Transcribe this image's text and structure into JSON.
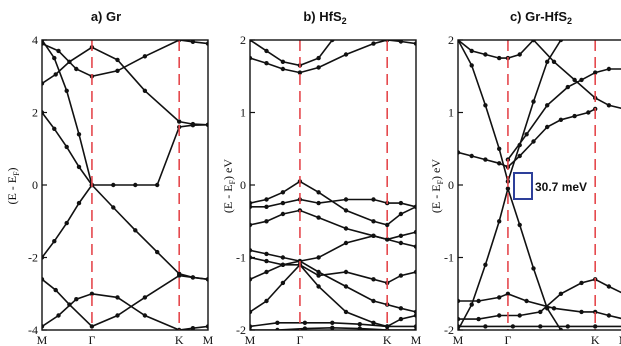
{
  "chart_data": [
    {
      "type": "line",
      "title": "a) Gr",
      "ylabel": "(E - E",
      "ylabel_sub": "F",
      "ylabel_close": ")",
      "ylim": [
        -4,
        4
      ],
      "yticks": [
        4,
        2,
        0,
        -2,
        -4
      ],
      "kpoints": [
        "M",
        "Γ",
        "K",
        "M"
      ],
      "kpos": [
        0,
        0.364,
        1.0,
        1.21
      ],
      "high_symmetry_lines": [
        "Γ",
        "K"
      ],
      "colors": {
        "bands": "#111111",
        "symmetry_line": "#e5484d"
      },
      "series": [
        {
          "x": [
            0,
            0.09,
            0.18,
            0.27,
            0.364,
            0.52,
            0.68,
            0.84,
            1.0,
            1.1,
            1.21
          ],
          "y": [
            2.0,
            1.55,
            1.05,
            0.5,
            0.0,
            0.0,
            0.0,
            0.0,
            1.6,
            1.65,
            1.66
          ]
        },
        {
          "x": [
            0,
            0.09,
            0.18,
            0.27,
            0.364,
            0.52,
            0.68,
            0.84,
            1.0,
            1.1,
            1.21
          ],
          "y": [
            -2.0,
            -1.55,
            -1.05,
            -0.5,
            0.0,
            -0.62,
            -1.25,
            -1.85,
            -2.45,
            -2.55,
            -2.6
          ]
        },
        {
          "x": [
            0,
            0.1,
            0.2,
            0.364,
            0.55,
            0.75,
            1.0,
            1.1,
            1.21
          ],
          "y": [
            2.8,
            3.05,
            3.4,
            3.8,
            3.45,
            2.6,
            1.75,
            1.68,
            1.66
          ]
        },
        {
          "x": [
            0,
            0.1,
            0.2,
            0.364,
            0.55,
            0.75,
            1.0,
            1.1,
            1.21
          ],
          "y": [
            -2.6,
            -2.9,
            -3.3,
            -3.9,
            -3.6,
            -3.1,
            -2.5,
            -2.55,
            -2.6
          ]
        },
        {
          "x": [
            0,
            0.12,
            0.25,
            0.364,
            0.55,
            0.75,
            1.0,
            1.1,
            1.21
          ],
          "y": [
            3.9,
            3.7,
            3.2,
            3.0,
            3.15,
            3.55,
            4.0,
            3.95,
            3.9
          ]
        },
        {
          "x": [
            0,
            0.12,
            0.25,
            0.364,
            0.55,
            0.75,
            1.0,
            1.1,
            1.21
          ],
          "y": [
            -3.9,
            -3.6,
            -3.15,
            -3.0,
            -3.1,
            -3.6,
            -4.0,
            -3.95,
            -3.9
          ]
        },
        {
          "x": [
            0,
            0.09,
            0.18,
            0.27,
            0.364
          ],
          "y": [
            4.0,
            3.5,
            2.6,
            1.4,
            0.0
          ]
        }
      ]
    },
    {
      "type": "line",
      "title": "b) HfS",
      "title_sub": "2",
      "ylabel": "(E - E",
      "ylabel_sub": "F",
      "ylabel_close": ") eV",
      "ylim": [
        -2,
        2
      ],
      "yticks": [
        2,
        1,
        0,
        -1,
        -2
      ],
      "kpoints": [
        "M",
        "Γ",
        "K",
        "M"
      ],
      "kpos": [
        0,
        0.364,
        1.0,
        1.21
      ],
      "high_symmetry_lines": [
        "Γ",
        "K"
      ],
      "colors": {
        "bands": "#111111",
        "symmetry_line": "#e5484d"
      },
      "series": [
        {
          "x": [
            0,
            0.12,
            0.24,
            0.364,
            0.5,
            0.7,
            0.9,
            1.0,
            1.1,
            1.21
          ],
          "y": [
            1.75,
            1.68,
            1.6,
            1.55,
            1.62,
            1.8,
            1.95,
            2.0,
            1.98,
            1.95
          ]
        },
        {
          "x": [
            0,
            0.12,
            0.24,
            0.364,
            0.5,
            0.6
          ],
          "y": [
            2.0,
            1.85,
            1.7,
            1.65,
            1.75,
            2.0
          ]
        },
        {
          "x": [
            0,
            0.12,
            0.24,
            0.364,
            0.5,
            0.7,
            0.9,
            1.0,
            1.1,
            1.21
          ],
          "y": [
            -0.25,
            -0.2,
            -0.1,
            0.05,
            -0.1,
            -0.35,
            -0.5,
            -0.55,
            -0.4,
            -0.3
          ]
        },
        {
          "x": [
            0,
            0.12,
            0.24,
            0.364,
            0.5,
            0.7,
            0.9,
            1.0,
            1.1,
            1.21
          ],
          "y": [
            -0.3,
            -0.3,
            -0.25,
            -0.2,
            -0.25,
            -0.2,
            -0.2,
            -0.25,
            -0.25,
            -0.3
          ]
        },
        {
          "x": [
            0,
            0.12,
            0.24,
            0.364,
            0.5,
            0.7,
            0.9,
            1.0,
            1.1,
            1.21
          ],
          "y": [
            -0.55,
            -0.5,
            -0.4,
            -0.35,
            -0.45,
            -0.6,
            -0.7,
            -0.75,
            -0.7,
            -0.65
          ]
        },
        {
          "x": [
            0,
            0.12,
            0.24,
            0.364,
            0.5,
            0.7,
            0.9,
            1.0,
            1.1,
            1.21
          ],
          "y": [
            -0.9,
            -0.95,
            -1.0,
            -1.05,
            -1.0,
            -0.8,
            -0.7,
            -0.75,
            -0.8,
            -0.85
          ]
        },
        {
          "x": [
            0,
            0.12,
            0.24,
            0.364,
            0.5,
            0.7,
            0.9,
            1.0,
            1.1,
            1.21
          ],
          "y": [
            -1.0,
            -1.05,
            -1.1,
            -1.05,
            -1.2,
            -1.4,
            -1.6,
            -1.65,
            -1.7,
            -1.75
          ]
        },
        {
          "x": [
            0,
            0.12,
            0.24,
            0.364,
            0.5,
            0.7,
            0.9,
            1.0,
            1.1,
            1.21
          ],
          "y": [
            -1.3,
            -1.2,
            -1.1,
            -1.1,
            -1.25,
            -1.2,
            -1.3,
            -1.35,
            -1.25,
            -1.2
          ]
        },
        {
          "x": [
            0,
            0.12,
            0.24,
            0.364,
            0.5,
            0.7,
            0.9,
            1.0,
            1.1,
            1.21
          ],
          "y": [
            -1.75,
            -1.6,
            -1.35,
            -1.1,
            -1.4,
            -1.75,
            -1.9,
            -1.95,
            -1.85,
            -1.8
          ]
        },
        {
          "x": [
            0,
            0.2,
            0.4,
            0.6,
            0.8,
            1.0,
            1.21
          ],
          "y": [
            -1.95,
            -1.9,
            -1.9,
            -1.9,
            -1.92,
            -1.95,
            -1.95
          ]
        },
        {
          "x": [
            0,
            0.2,
            0.4,
            0.6,
            0.8,
            1.0,
            1.21
          ],
          "y": [
            -2.0,
            -2.0,
            -1.98,
            -1.97,
            -1.98,
            -2.0,
            -2.0
          ]
        }
      ]
    },
    {
      "type": "line",
      "title": "c) Gr-HfS",
      "title_sub": "2",
      "ylabel": "(E - E",
      "ylabel_sub": "F",
      "ylabel_close": ") eV",
      "ylim": [
        -2,
        2
      ],
      "yticks": [
        2,
        1,
        0,
        -1,
        -2
      ],
      "kpoints": [
        "M",
        "Γ",
        "K",
        "M"
      ],
      "kpos": [
        0,
        0.364,
        1.0,
        1.21
      ],
      "high_symmetry_lines": [
        "Γ",
        "K"
      ],
      "annotation": "30.7 meV",
      "colors": {
        "bands": "#111111",
        "symmetry_line": "#e5484d",
        "box": "#2d3f9a"
      },
      "series": [
        {
          "x": [
            0,
            0.1,
            0.2,
            0.3,
            0.364,
            0.45,
            0.55,
            0.65,
            0.75
          ],
          "y": [
            2.0,
            1.65,
            1.1,
            0.5,
            0.05,
            0.55,
            1.15,
            1.7,
            2.0
          ]
        },
        {
          "x": [
            0,
            0.1,
            0.2,
            0.3,
            0.364,
            0.45,
            0.55,
            0.65,
            0.75
          ],
          "y": [
            -2.0,
            -1.65,
            -1.1,
            -0.5,
            -0.05,
            -0.55,
            -1.15,
            -1.7,
            -2.0
          ]
        },
        {
          "x": [
            0,
            0.1,
            0.2,
            0.3,
            0.364,
            0.45,
            0.55,
            0.65,
            0.75,
            0.85,
            0.95,
            1.0
          ],
          "y": [
            0.45,
            0.4,
            0.35,
            0.3,
            0.25,
            0.4,
            0.6,
            0.8,
            0.9,
            0.95,
            1.0,
            1.05
          ]
        },
        {
          "x": [
            0,
            0.1,
            0.2,
            0.3,
            0.364,
            0.45,
            0.55
          ],
          "y": [
            2.0,
            1.85,
            1.8,
            1.75,
            1.75,
            1.8,
            2.0
          ]
        },
        {
          "x": [
            0.364,
            0.5,
            0.65,
            0.8,
            0.9,
            1.0,
            1.1,
            1.21
          ],
          "y": [
            0.35,
            0.7,
            1.1,
            1.35,
            1.45,
            1.55,
            1.6,
            1.6
          ]
        },
        {
          "x": [
            0.55,
            0.7,
            0.85,
            1.0,
            1.1,
            1.21
          ],
          "y": [
            2.0,
            1.7,
            1.45,
            1.2,
            1.1,
            1.05
          ]
        },
        {
          "x": [
            0,
            0.15,
            0.3,
            0.364,
            0.5,
            0.7,
            0.9,
            1.0,
            1.1,
            1.21
          ],
          "y": [
            -1.6,
            -1.6,
            -1.55,
            -1.5,
            -1.6,
            -1.7,
            -1.75,
            -1.75,
            -1.8,
            -1.85
          ]
        },
        {
          "x": [
            0,
            0.15,
            0.3,
            0.45,
            0.6,
            0.75,
            0.9,
            1.0,
            1.1,
            1.21
          ],
          "y": [
            -1.85,
            -1.85,
            -1.8,
            -1.8,
            -1.75,
            -1.5,
            -1.35,
            -1.3,
            -1.4,
            -1.5
          ]
        },
        {
          "x": [
            0,
            0.2,
            0.4,
            0.6,
            0.8,
            1.0,
            1.21
          ],
          "y": [
            -1.95,
            -1.95,
            -1.95,
            -1.95,
            -1.95,
            -1.95,
            -1.95
          ]
        }
      ]
    }
  ]
}
